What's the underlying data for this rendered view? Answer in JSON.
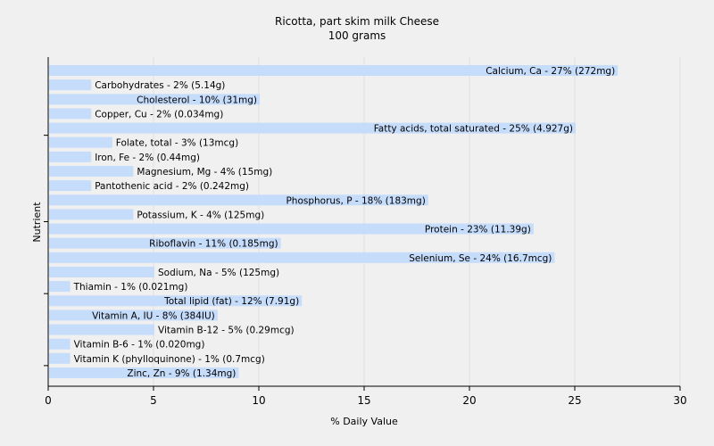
{
  "chart_data": {
    "type": "bar",
    "orientation": "horizontal",
    "title": "Ricotta, part skim milk Cheese",
    "subtitle": "100 grams",
    "xlabel": "% Daily Value",
    "ylabel": "Nutrient",
    "xlim": [
      0,
      30
    ],
    "xticks": [
      "0",
      "5",
      "10",
      "15",
      "20",
      "25",
      "30"
    ],
    "grid": true,
    "bar_color": "#c6dcfb",
    "categories": [
      "Calcium, Ca",
      "Carbohydrates",
      "Cholesterol",
      "Copper, Cu",
      "Fatty acids, total saturated",
      "Folate, total",
      "Iron, Fe",
      "Magnesium, Mg",
      "Pantothenic acid",
      "Phosphorus, P",
      "Potassium, K",
      "Protein",
      "Riboflavin",
      "Selenium, Se",
      "Sodium, Na",
      "Thiamin",
      "Total lipid (fat)",
      "Vitamin A, IU",
      "Vitamin B-12",
      "Vitamin B-6",
      "Vitamin K (phylloquinone)",
      "Zinc, Zn"
    ],
    "values": [
      27,
      2,
      10,
      2,
      25,
      3,
      2,
      4,
      2,
      18,
      4,
      23,
      11,
      24,
      5,
      1,
      12,
      8,
      5,
      1,
      1,
      9
    ],
    "labels": [
      "Calcium, Ca - 27% (272mg)",
      "Carbohydrates - 2% (5.14g)",
      "Cholesterol - 10% (31mg)",
      "Copper, Cu - 2% (0.034mg)",
      "Fatty acids, total saturated - 25% (4.927g)",
      "Folate, total - 3% (13mcg)",
      "Iron, Fe - 2% (0.44mg)",
      "Magnesium, Mg - 4% (15mg)",
      "Pantothenic acid - 2% (0.242mg)",
      "Phosphorus, P - 18% (183mg)",
      "Potassium, K - 4% (125mg)",
      "Protein - 23% (11.39g)",
      "Riboflavin - 11% (0.185mg)",
      "Selenium, Se - 24% (16.7mcg)",
      "Sodium, Na - 5% (125mg)",
      "Thiamin - 1% (0.021mg)",
      "Total lipid (fat) - 12% (7.91g)",
      "Vitamin A, IU - 8% (384IU)",
      "Vitamin B-12 - 5% (0.29mcg)",
      "Vitamin B-6 - 1% (0.020mg)",
      "Vitamin K (phylloquinone) - 1% (0.7mcg)",
      "Zinc, Zn - 9% (1.34mg)"
    ]
  }
}
